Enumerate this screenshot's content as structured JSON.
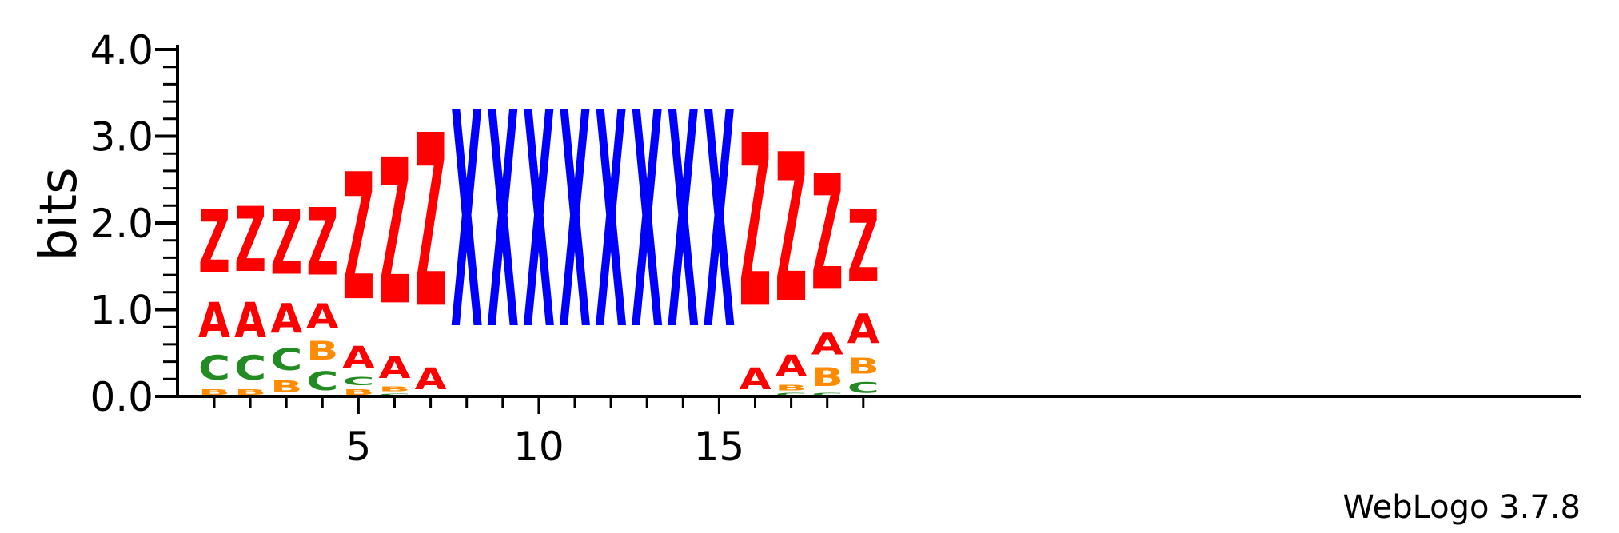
{
  "footer": "WebLogo 3.7.8",
  "chart_data": {
    "type": "sequence-logo",
    "ylabel": "bits",
    "ylim": [
      0,
      4
    ],
    "y_ticks": [
      {
        "value": 0,
        "label": "0.0"
      },
      {
        "value": 1,
        "label": "1.0"
      },
      {
        "value": 2,
        "label": "2.0"
      },
      {
        "value": 3,
        "label": "3.0"
      },
      {
        "value": 4,
        "label": "4.0"
      }
    ],
    "x_range": [
      1,
      19
    ],
    "x_ticks": [
      {
        "value": 5,
        "label": "5"
      },
      {
        "value": 10,
        "label": "10"
      },
      {
        "value": 15,
        "label": "15"
      }
    ],
    "colors": {
      "Z": "#ff0000",
      "A": "#ff0000",
      "X": "#0000ff",
      "C": "#228b22",
      "B": "#ff8c00"
    },
    "positions": [
      {
        "pos": 1,
        "stack": [
          {
            "l": "B",
            "h": 0.1
          },
          {
            "l": "C",
            "h": 0.45
          },
          {
            "l": "A",
            "h": 0.65
          },
          {
            "l": "Z",
            "h": 1.15
          }
        ]
      },
      {
        "pos": 2,
        "stack": [
          {
            "l": "B",
            "h": 0.1
          },
          {
            "l": "C",
            "h": 0.45
          },
          {
            "l": "A",
            "h": 0.65
          },
          {
            "l": "Z",
            "h": 1.2
          }
        ]
      },
      {
        "pos": 3,
        "stack": [
          {
            "l": "B",
            "h": 0.22
          },
          {
            "l": "C",
            "h": 0.4
          },
          {
            "l": "A",
            "h": 0.55
          },
          {
            "l": "Z",
            "h": 1.2
          }
        ]
      },
      {
        "pos": 4,
        "stack": [
          {
            "l": "C",
            "h": 0.35
          },
          {
            "l": "B",
            "h": 0.35
          },
          {
            "l": "A",
            "h": 0.45
          },
          {
            "l": "Z",
            "h": 1.25
          }
        ]
      },
      {
        "pos": 5,
        "stack": [
          {
            "l": "B",
            "h": 0.1
          },
          {
            "l": "C",
            "h": 0.15
          },
          {
            "l": "A",
            "h": 0.4
          },
          {
            "l": "Z",
            "h": 2.35
          }
        ]
      },
      {
        "pos": 6,
        "stack": [
          {
            "l": "C",
            "h": 0.04
          },
          {
            "l": "B",
            "h": 0.09
          },
          {
            "l": "A",
            "h": 0.4
          },
          {
            "l": "Z",
            "h": 2.7
          }
        ]
      },
      {
        "pos": 7,
        "stack": [
          {
            "l": "A",
            "h": 0.4
          },
          {
            "l": "Z",
            "h": 3.2
          }
        ]
      },
      {
        "pos": 8,
        "stack": [
          {
            "l": "X",
            "h": 4.0
          }
        ]
      },
      {
        "pos": 9,
        "stack": [
          {
            "l": "X",
            "h": 4.0
          }
        ]
      },
      {
        "pos": 10,
        "stack": [
          {
            "l": "X",
            "h": 4.0
          }
        ]
      },
      {
        "pos": 11,
        "stack": [
          {
            "l": "X",
            "h": 4.0
          }
        ]
      },
      {
        "pos": 12,
        "stack": [
          {
            "l": "X",
            "h": 4.0
          }
        ]
      },
      {
        "pos": 13,
        "stack": [
          {
            "l": "X",
            "h": 4.0
          }
        ]
      },
      {
        "pos": 14,
        "stack": [
          {
            "l": "X",
            "h": 4.0
          }
        ]
      },
      {
        "pos": 15,
        "stack": [
          {
            "l": "X",
            "h": 4.0
          }
        ]
      },
      {
        "pos": 16,
        "stack": [
          {
            "l": "A",
            "h": 0.4
          },
          {
            "l": "Z",
            "h": 3.2
          }
        ]
      },
      {
        "pos": 17,
        "stack": [
          {
            "l": "C",
            "h": 0.05
          },
          {
            "l": "B",
            "h": 0.1
          },
          {
            "l": "A",
            "h": 0.4
          },
          {
            "l": "Z",
            "h": 2.75
          }
        ]
      },
      {
        "pos": 18,
        "stack": [
          {
            "l": "C",
            "h": 0.05
          },
          {
            "l": "B",
            "h": 0.35
          },
          {
            "l": "A",
            "h": 0.4
          },
          {
            "l": "Z",
            "h": 2.15
          }
        ]
      },
      {
        "pos": 19,
        "stack": [
          {
            "l": "C",
            "h": 0.2
          },
          {
            "l": "B",
            "h": 0.3
          },
          {
            "l": "A",
            "h": 0.55
          },
          {
            "l": "Z",
            "h": 1.35
          }
        ]
      }
    ]
  }
}
